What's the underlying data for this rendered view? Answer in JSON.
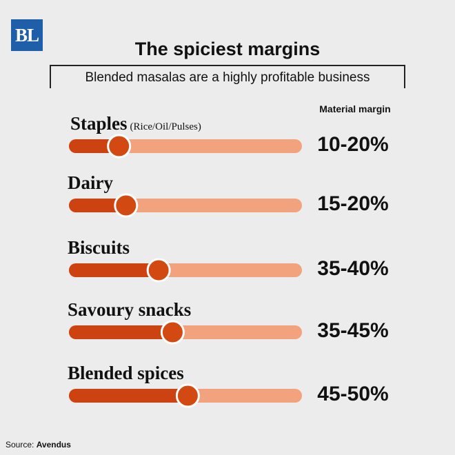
{
  "logo": "BL",
  "title": "The spiciest margins",
  "subtitle": "Blended masalas are a highly profitable business",
  "column_header": "Material margin",
  "source": {
    "label": "Source:",
    "name": "Avendus"
  },
  "colors": {
    "background": "#ececec",
    "track": "#f2a27c",
    "fill": "#cc4210",
    "knob": "#d24a12",
    "knob_ring": "#ffffff",
    "logo": "#1f5ea8"
  },
  "chart_data": {
    "type": "bar",
    "title": "The spiciest margins",
    "subtitle": "Blended masalas are a highly profitable business",
    "value_label": "Material margin",
    "categories": [
      "Staples",
      "Dairy",
      "Biscuits",
      "Savoury snacks",
      "Blended spices"
    ],
    "category_notes": [
      "(Rice/Oil/Pulses)",
      "",
      "",
      "",
      ""
    ],
    "ranges": [
      [
        10,
        20
      ],
      [
        15,
        20
      ],
      [
        35,
        40
      ],
      [
        35,
        45
      ],
      [
        45,
        50
      ]
    ],
    "value_labels": [
      "10-20%",
      "15-20%",
      "35-40%",
      "35-45%",
      "45-50%"
    ],
    "unit": "%",
    "grid": false,
    "legend": "none"
  }
}
